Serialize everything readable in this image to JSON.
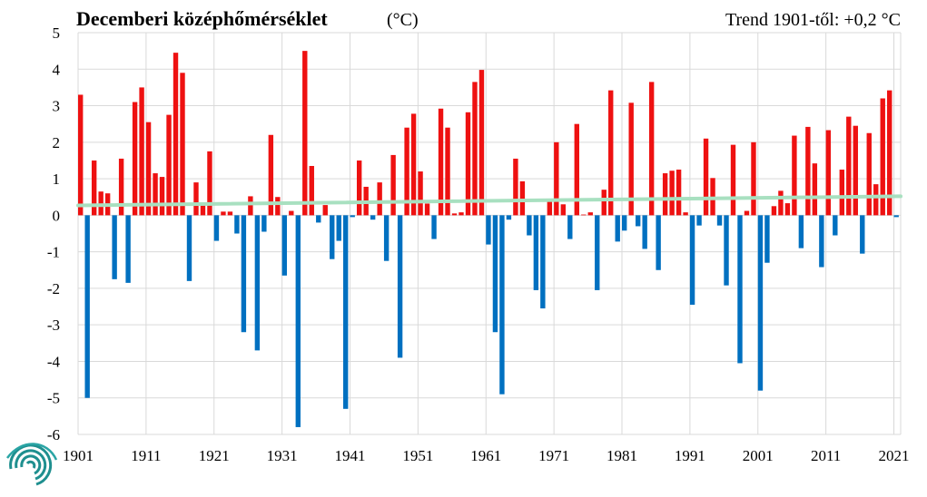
{
  "chart_data": {
    "type": "bar",
    "title": "Decemberi középhőmérséklet",
    "unit": "(°C)",
    "trend_label": "Trend 1901-től: +0,2 °C",
    "ylim": [
      -6,
      5
    ],
    "yticks": [
      "5",
      "4",
      "3",
      "2",
      "1",
      "0",
      "-1",
      "-2",
      "-3",
      "-4",
      "-5",
      "-6"
    ],
    "xticks": [
      "1901",
      "1911",
      "1921",
      "1931",
      "1941",
      "1951",
      "1961",
      "1971",
      "1981",
      "1991",
      "2001",
      "2011",
      "2021"
    ],
    "x_start": 1901,
    "grid": true,
    "colors": {
      "positive": "#ee1111",
      "negative": "#0070c0",
      "trend": "#a8e0c0",
      "logo": "#1f8f8f"
    },
    "trend_line": {
      "from": [
        1901,
        0.27
      ],
      "to": [
        2021,
        0.52
      ]
    },
    "years": [
      1901,
      1902,
      1903,
      1904,
      1905,
      1906,
      1907,
      1908,
      1909,
      1910,
      1911,
      1912,
      1913,
      1914,
      1915,
      1916,
      1917,
      1918,
      1919,
      1920,
      1921,
      1922,
      1923,
      1924,
      1925,
      1926,
      1927,
      1928,
      1929,
      1930,
      1931,
      1932,
      1933,
      1934,
      1935,
      1936,
      1937,
      1938,
      1939,
      1940,
      1941,
      1942,
      1943,
      1944,
      1945,
      1946,
      1947,
      1948,
      1949,
      1950,
      1951,
      1952,
      1953,
      1954,
      1955,
      1956,
      1957,
      1958,
      1959,
      1960,
      1961,
      1962,
      1963,
      1964,
      1965,
      1966,
      1967,
      1968,
      1969,
      1970,
      1971,
      1972,
      1973,
      1974,
      1975,
      1976,
      1977,
      1978,
      1979,
      1980,
      1981,
      1982,
      1983,
      1984,
      1985,
      1986,
      1987,
      1988,
      1989,
      1990,
      1991,
      1992,
      1993,
      1994,
      1995,
      1996,
      1997,
      1998,
      1999,
      2000,
      2001,
      2002,
      2003,
      2004,
      2005,
      2006,
      2007,
      2008,
      2009,
      2010,
      2011,
      2012,
      2013,
      2014,
      2015,
      2016,
      2017,
      2018,
      2019,
      2020,
      2021
    ],
    "values": [
      3.3,
      -5.0,
      1.5,
      0.65,
      0.6,
      -1.75,
      1.55,
      -1.85,
      3.1,
      3.5,
      2.55,
      1.15,
      1.05,
      2.75,
      4.45,
      3.9,
      -1.8,
      0.9,
      0.3,
      1.75,
      -0.7,
      0.1,
      0.1,
      -0.5,
      -3.2,
      0.52,
      -3.7,
      -0.45,
      2.2,
      0.5,
      -1.65,
      0.12,
      -5.8,
      4.5,
      1.35,
      -0.2,
      0.28,
      -1.2,
      -0.7,
      -5.3,
      -0.05,
      1.5,
      0.78,
      -0.12,
      0.9,
      -1.25,
      1.65,
      -3.9,
      2.4,
      2.78,
      1.2,
      0.32,
      -0.65,
      2.92,
      2.4,
      0.05,
      0.08,
      2.82,
      3.65,
      3.98,
      -0.8,
      -3.2,
      -4.9,
      -0.12,
      1.55,
      0.93,
      -0.55,
      -2.05,
      -2.55,
      0.4,
      2.0,
      0.3,
      -0.65,
      2.5,
      0.02,
      0.08,
      -2.05,
      0.7,
      3.42,
      -0.72,
      -0.42,
      3.08,
      -0.3,
      -0.92,
      3.65,
      -1.5,
      1.15,
      1.22,
      1.25,
      0.08,
      -2.45,
      -0.28,
      2.1,
      1.02,
      -0.28,
      -1.92,
      1.93,
      -4.05,
      0.12,
      2.0,
      -4.8,
      -1.3,
      0.25,
      0.67,
      0.33,
      2.18,
      -0.9,
      2.42,
      1.42,
      -1.42,
      2.33,
      -0.55,
      1.25,
      2.7,
      2.45,
      -1.05,
      2.25,
      0.85,
      3.2,
      3.42,
      -0.05
    ]
  }
}
